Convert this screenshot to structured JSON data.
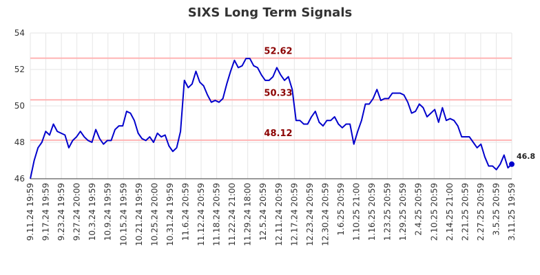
{
  "chart_data": {
    "type": "line",
    "title": "SIXS Long Term Signals",
    "ylim": [
      46,
      54
    ],
    "y_ticks": [
      46,
      48,
      50,
      52,
      54
    ],
    "grid": true,
    "x_tick_labels": [
      "9.11.24 19:59",
      "9.17.24 19:59",
      "9.23.24 19:59",
      "9.27.24 20:00",
      "10.3.24 19:59",
      "10.9.24 19:59",
      "10.15.24 19:59",
      "10.21.24 19:59",
      "10.25.24 20:00",
      "10.31.24 19:59",
      "11.6.24 20:59",
      "11.12.24 20:59",
      "11.18.24 20:59",
      "11.22.24 21:00",
      "11.29.24 18:00",
      "12.5.24 20:59",
      "12.11.24 20:59",
      "12.17.24 20:59",
      "12.23.24 20:59",
      "12.30.24 20:59",
      "1.6.25 20:59",
      "1.10.25 21:00",
      "1.16.25 20:59",
      "1.23.25 20:59",
      "1.29.25 20:59",
      "2.4.25 20:59",
      "2.10.25 20:59",
      "2.14.25 21:00",
      "2.21.25 20:59",
      "2.27.25 20:59",
      "3.5.25 20:59",
      "3.11.25 19:59"
    ],
    "levels": [
      {
        "value": 52.62,
        "label": "52.62"
      },
      {
        "value": 50.33,
        "label": "50.33"
      },
      {
        "value": 48.12,
        "label": "48.12"
      }
    ],
    "last_value_label": "46.8",
    "colors": {
      "line": "#0000cc",
      "level": "#ffb3b3",
      "level_text": "#8b0000",
      "grid": "#e6e6e6"
    },
    "series": [
      {
        "values": [
          46.0,
          47.0,
          47.7,
          48.0,
          48.6,
          48.4,
          49.0,
          48.6,
          48.5,
          48.4,
          47.7,
          48.1,
          48.3,
          48.6,
          48.3,
          48.1,
          48.0,
          48.7,
          48.2,
          47.9,
          48.1,
          48.1,
          48.7,
          48.9,
          48.9,
          49.7,
          49.6,
          49.2,
          48.5,
          48.2,
          48.1,
          48.3,
          48.0,
          48.5,
          48.3,
          48.4,
          47.8,
          47.5,
          47.7,
          48.6,
          51.4,
          51.0,
          51.2,
          51.9,
          51.3,
          51.1,
          50.6,
          50.2,
          50.3,
          50.2,
          50.4,
          51.2,
          51.9,
          52.5,
          52.1,
          52.2,
          52.6,
          52.6,
          52.2,
          52.1,
          51.7,
          51.4,
          51.4,
          51.6,
          52.1,
          51.7,
          51.4,
          51.6,
          50.9,
          49.2,
          49.2,
          49.0,
          49.0,
          49.4,
          49.7,
          49.1,
          48.9,
          49.2,
          49.2,
          49.4,
          49.0,
          48.8,
          49.0,
          49.0,
          47.9,
          48.6,
          49.2,
          50.1,
          50.1,
          50.4,
          50.9,
          50.3,
          50.4,
          50.4,
          50.7,
          50.7,
          50.7,
          50.6,
          50.2,
          49.6,
          49.7,
          50.1,
          49.9,
          49.4,
          49.6,
          49.8,
          49.1,
          49.9,
          49.2,
          49.3,
          49.2,
          48.9,
          48.3,
          48.3,
          48.3,
          48.0,
          47.7,
          47.9,
          47.2,
          46.7,
          46.7,
          46.5,
          46.8,
          47.3,
          46.6,
          46.8
        ]
      }
    ]
  }
}
